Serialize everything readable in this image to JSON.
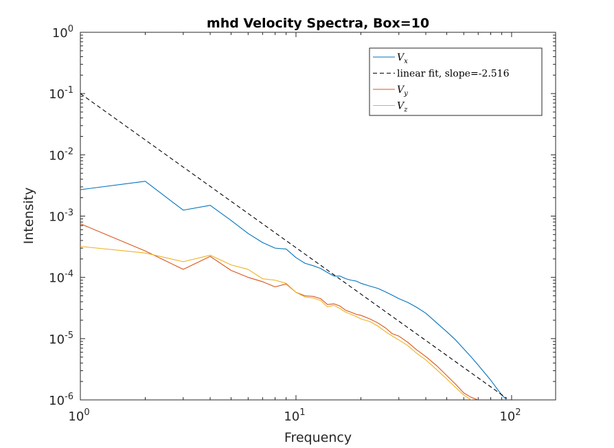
{
  "chart_data": {
    "type": "line",
    "title": "mhd Velocity Spectra, Box=10",
    "xlabel": "Frequency",
    "ylabel": "Intensity",
    "xscale": "log",
    "yscale": "log",
    "xlim": [
      1,
      160
    ],
    "ylim": [
      1e-06,
      1
    ],
    "grid": false,
    "legend_position": "top-right",
    "x_ticks": [
      {
        "base": "10",
        "exp": "0",
        "value": 1
      },
      {
        "base": "10",
        "exp": "1",
        "value": 10
      },
      {
        "base": "10",
        "exp": "2",
        "value": 100
      }
    ],
    "y_ticks": [
      {
        "base": "10",
        "exp": "0",
        "value": 1
      },
      {
        "base": "10",
        "exp": "-1",
        "value": 0.1
      },
      {
        "base": "10",
        "exp": "-2",
        "value": 0.01
      },
      {
        "base": "10",
        "exp": "-3",
        "value": 0.001
      },
      {
        "base": "10",
        "exp": "-4",
        "value": 0.0001
      },
      {
        "base": "10",
        "exp": "-5",
        "value": 1e-05
      },
      {
        "base": "10",
        "exp": "-6",
        "value": 1e-06
      }
    ],
    "series": [
      {
        "name": "V_x",
        "legend_main": "V",
        "legend_sub": "x",
        "color": "#0072BD",
        "dash": "",
        "x": [
          1,
          2,
          3,
          4,
          5,
          6,
          7,
          8,
          9,
          10,
          11,
          12,
          13,
          14,
          15,
          16,
          17,
          18,
          19,
          20,
          22,
          24,
          26,
          28,
          30,
          33,
          36,
          40,
          45,
          50,
          55,
          60,
          65,
          70,
          80,
          90,
          95
        ],
        "y": [
          0.0027,
          0.0037,
          0.00125,
          0.0015,
          0.00085,
          0.00052,
          0.00037,
          0.0003,
          0.00029,
          0.00021,
          0.00017,
          0.000155,
          0.00014,
          0.00012,
          0.000105,
          0.000105,
          9.5e-05,
          9e-05,
          8.7e-05,
          8e-05,
          7.2e-05,
          6.6e-05,
          5.8e-05,
          5.1e-05,
          4.5e-05,
          3.9e-05,
          3.3e-05,
          2.6e-05,
          1.8e-05,
          1.3e-05,
          9.5e-06,
          6.8e-06,
          5e-06,
          3.7e-06,
          2.1e-06,
          1.2e-06,
          1e-06
        ]
      },
      {
        "name": "linear fit, slope=-2.516",
        "legend_main": "linear fit, slope=-2.516",
        "legend_sub": "",
        "color": "#000000",
        "dash": "6,4",
        "x": [
          1,
          95
        ],
        "y": [
          0.1,
          1.06e-06
        ]
      },
      {
        "name": "V_y",
        "legend_main": "V",
        "legend_sub": "y",
        "color": "#D95319",
        "dash": "",
        "x": [
          1,
          2,
          3,
          4,
          5,
          6,
          7,
          8,
          9,
          10,
          11,
          12,
          13,
          14,
          15,
          16,
          17,
          18,
          19,
          20,
          22,
          24,
          26,
          28,
          30,
          33,
          36,
          40,
          45,
          50,
          55,
          60,
          65,
          70
        ],
        "y": [
          0.00075,
          0.00027,
          0.000135,
          0.00022,
          0.00013,
          0.0001,
          8.5e-05,
          7e-05,
          7.8e-05,
          5.7e-05,
          5e-05,
          4.9e-05,
          4.5e-05,
          3.6e-05,
          3.7e-05,
          3.4e-05,
          2.9e-05,
          2.7e-05,
          2.5e-05,
          2.4e-05,
          2.1e-05,
          1.8e-05,
          1.5e-05,
          1.2e-05,
          1.1e-05,
          8.7e-06,
          6.7e-06,
          5.1e-06,
          3.6e-06,
          2.5e-06,
          1.8e-06,
          1.3e-06,
          1.1e-06,
          1e-06
        ]
      },
      {
        "name": "V_z",
        "legend_main": "V",
        "legend_sub": "z",
        "color": "#EDB120",
        "dash": "",
        "x": [
          1,
          2,
          3,
          4,
          5,
          6,
          7,
          8,
          9,
          10,
          11,
          12,
          13,
          14,
          15,
          16,
          17,
          18,
          19,
          20,
          22,
          24,
          26,
          28,
          30,
          33,
          36,
          40,
          45,
          50,
          55,
          60,
          65,
          70
        ],
        "y": [
          0.00032,
          0.00025,
          0.00018,
          0.00023,
          0.00016,
          0.000135,
          9.5e-05,
          9e-05,
          8e-05,
          5.7e-05,
          4.8e-05,
          4.6e-05,
          4.2e-05,
          3.3e-05,
          3.5e-05,
          3.1e-05,
          2.7e-05,
          2.5e-05,
          2.3e-05,
          2.1e-05,
          1.9e-05,
          1.6e-05,
          1.3e-05,
          1.1e-05,
          9.5e-06,
          7.7e-06,
          5.9e-06,
          4.5e-06,
          3.1e-06,
          2.2e-06,
          1.6e-06,
          1.2e-06,
          1e-06,
          9.2e-07
        ]
      }
    ]
  }
}
